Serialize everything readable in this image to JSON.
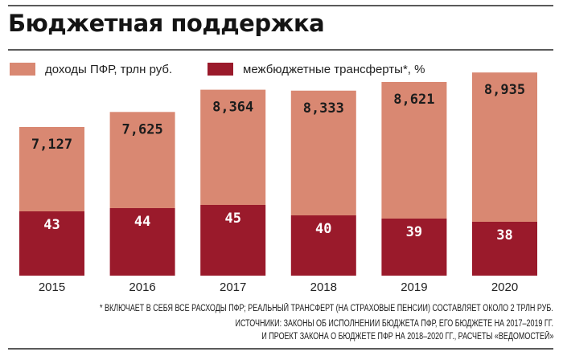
{
  "title": "Бюджетная поддержка",
  "colors": {
    "income": "#d98872",
    "transfers": "#9a1a2b",
    "rule": "#5a5a5a"
  },
  "legend": [
    {
      "label": "доходы ПФР, трлн руб.",
      "color": "#d98872"
    },
    {
      "label": "межбюджетные трансферты*, %",
      "color": "#9a1a2b"
    }
  ],
  "chart_data": {
    "type": "bar",
    "stacked": true,
    "title": "Бюджетная поддержка",
    "categories": [
      "2015",
      "2016",
      "2017",
      "2018",
      "2019",
      "2020"
    ],
    "series": [
      {
        "name": "доходы ПФР, трлн руб.",
        "values": [
          7.127,
          7.625,
          8.364,
          8.333,
          8.621,
          8.935
        ],
        "labels": [
          "7,127",
          "7,625",
          "8,364",
          "8,333",
          "8,621",
          "8,935"
        ]
      },
      {
        "name": "межбюджетные трансферты*, %",
        "values": [
          43,
          44,
          45,
          40,
          39,
          38
        ],
        "labels": [
          "43",
          "44",
          "45",
          "40",
          "39",
          "38"
        ]
      }
    ],
    "xlabel": "",
    "ylabel": "",
    "grid": false,
    "legend_position": "top-left"
  },
  "footnote": "* ВКЛЮЧАЕТ В СЕБЯ ВСЕ РАСХОДЫ ПФР; РЕАЛЬНЫЙ ТРАНСФЕРТ (НА СТРАХОВЫЕ ПЕНСИИ) СОСТАВЛЯЕТ ОКОЛО 2 ТРЛН РУБ.",
  "sources_line1": "ИСТОЧНИКИ: ЗАКОНЫ ОБ ИСПОЛНЕНИИ БЮДЖЕТА ПФР, ЕГО БЮДЖЕТЕ НА 2017–2019 ГГ.",
  "sources_line2": "И ПРОЕКТ ЗАКОНА О БЮДЖЕТЕ ПФР НА 2018–2020 ГГ., РАСЧЕТЫ «ВЕДОМОСТЕЙ»"
}
